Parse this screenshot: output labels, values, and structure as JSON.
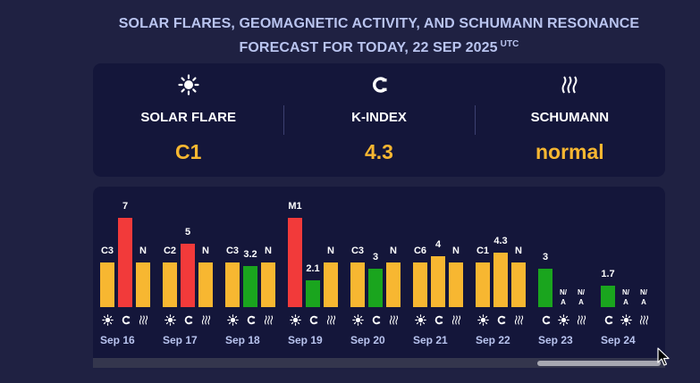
{
  "header": {
    "title_line1": "SOLAR FLARES, GEOMAGNETIC ACTIVITY, AND SCHUMANN RESONANCE",
    "title_line2": "FORECAST FOR TODAY, 22 SEP 2025",
    "timezone": "UTC"
  },
  "summary": [
    {
      "icon": "sun-icon",
      "label": "SOLAR FLARE",
      "value": "C1"
    },
    {
      "icon": "magnet-icon",
      "label": "K-INDEX",
      "value": "4.3"
    },
    {
      "icon": "wave-icon",
      "label": "SCHUMANN",
      "value": "normal"
    }
  ],
  "colors": {
    "background": "#1f2142",
    "panel": "#14163a",
    "yellow": "#f7b731",
    "red": "#f23a3a",
    "green": "#1aa51e",
    "date_text": "#b9c4ef",
    "icon_glyph": "#ffffff"
  },
  "forecast": {
    "days": [
      {
        "date": "Sep 16",
        "bars": [
          {
            "category": "solar-flare",
            "label": "C3",
            "level": "yellow"
          },
          {
            "category": "k-index",
            "label": "7",
            "value": 7,
            "level": "red"
          },
          {
            "category": "schumann",
            "label": "N",
            "level": "yellow"
          }
        ]
      },
      {
        "date": "Sep 17",
        "bars": [
          {
            "category": "solar-flare",
            "label": "C2",
            "level": "yellow"
          },
          {
            "category": "k-index",
            "label": "5",
            "value": 5,
            "level": "red"
          },
          {
            "category": "schumann",
            "label": "N",
            "level": "yellow"
          }
        ]
      },
      {
        "date": "Sep 18",
        "bars": [
          {
            "category": "solar-flare",
            "label": "C3",
            "level": "yellow"
          },
          {
            "category": "k-index",
            "label": "3.2",
            "value": 3.2,
            "level": "green"
          },
          {
            "category": "schumann",
            "label": "N",
            "level": "yellow"
          }
        ]
      },
      {
        "date": "Sep 19",
        "bars": [
          {
            "category": "solar-flare",
            "label": "M1",
            "level": "red"
          },
          {
            "category": "k-index",
            "label": "2.1",
            "value": 2.1,
            "level": "green"
          },
          {
            "category": "schumann",
            "label": "N",
            "level": "yellow"
          }
        ]
      },
      {
        "date": "Sep 20",
        "bars": [
          {
            "category": "solar-flare",
            "label": "C3",
            "level": "yellow"
          },
          {
            "category": "k-index",
            "label": "3",
            "value": 3,
            "level": "green"
          },
          {
            "category": "schumann",
            "label": "N",
            "level": "yellow"
          }
        ]
      },
      {
        "date": "Sep 21",
        "bars": [
          {
            "category": "solar-flare",
            "label": "C6",
            "level": "yellow"
          },
          {
            "category": "k-index",
            "label": "4",
            "value": 4,
            "level": "yellow"
          },
          {
            "category": "schumann",
            "label": "N",
            "level": "yellow"
          }
        ]
      },
      {
        "date": "Sep 22",
        "bars": [
          {
            "category": "solar-flare",
            "label": "C1",
            "level": "yellow"
          },
          {
            "category": "k-index",
            "label": "4.3",
            "value": 4.3,
            "level": "yellow"
          },
          {
            "category": "schumann",
            "label": "N",
            "level": "yellow"
          }
        ]
      },
      {
        "date": "Sep 23",
        "bars": [
          {
            "category": "k-index",
            "label": "3",
            "value": 3,
            "level": "green"
          },
          {
            "category": "solar-flare",
            "label": "N/A",
            "level": "none"
          },
          {
            "category": "schumann",
            "label": "N/A",
            "level": "none"
          }
        ]
      },
      {
        "date": "Sep 24",
        "bars": [
          {
            "category": "k-index",
            "label": "1.7",
            "value": 1.7,
            "level": "green"
          },
          {
            "category": "solar-flare",
            "label": "N/A",
            "level": "none"
          },
          {
            "category": "schumann",
            "label": "N/A",
            "level": "none"
          }
        ]
      }
    ]
  }
}
